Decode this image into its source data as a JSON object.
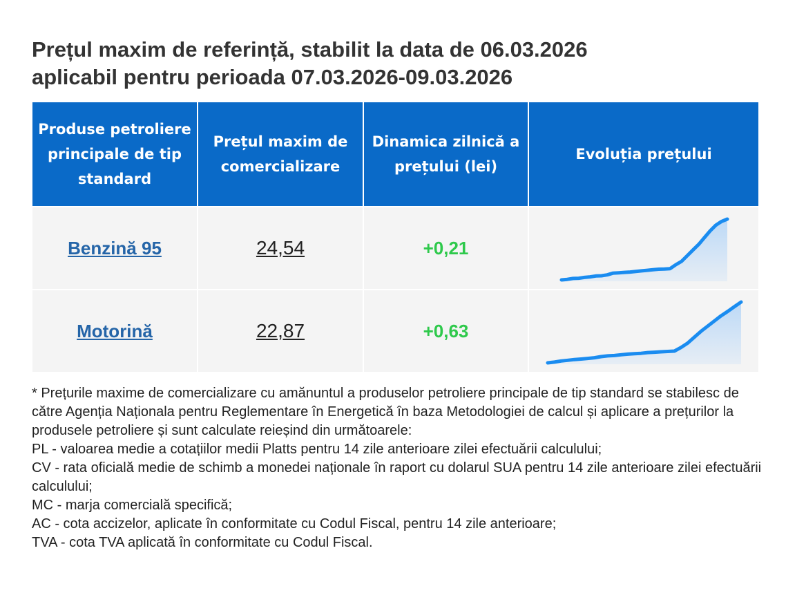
{
  "title_line1": "Prețul maxim de referință, stabilit la data de 06.03.2026",
  "title_line2": "aplicabil pentru perioada 07.03.2026-09.03.2026",
  "table": {
    "headers": [
      "Produse petroliere principale de tip standard",
      "Prețul maxim de comercializare",
      "Dinamica zilnică a prețului (lei)",
      "Evoluția prețului"
    ],
    "rows": [
      {
        "product": "Benzină 95",
        "price": "24,54",
        "change": "+0,21",
        "trend": [
          19.15,
          19.2,
          19.28,
          19.3,
          19.37,
          19.42,
          19.5,
          19.52,
          19.6,
          19.75,
          19.78,
          19.82,
          19.85,
          19.9,
          19.95,
          20.0,
          20.05,
          20.1,
          20.12,
          20.15,
          20.5,
          20.8,
          21.3,
          21.8,
          22.3,
          22.9,
          23.5,
          24.0,
          24.33,
          24.54
        ]
      },
      {
        "product": "Motorină",
        "price": "22,87",
        "change": "+0,63",
        "trend": [
          14.6,
          14.7,
          14.85,
          14.95,
          15.05,
          15.12,
          15.2,
          15.3,
          15.45,
          15.55,
          15.6,
          15.7,
          15.78,
          15.85,
          15.9,
          16.0,
          16.05,
          16.1,
          16.15,
          16.2,
          16.7,
          17.3,
          18.1,
          18.9,
          19.6,
          20.3,
          21.0,
          21.6,
          22.24,
          22.87
        ]
      }
    ]
  },
  "notes": [
    "* Prețurile maxime de comercializare cu amănuntul a produselor petroliere principale de tip standard se stabilesc de către Agenția Naționala pentru Reglementare în Energetică în baza Metodologiei de calcul și aplicare a prețurilor la produsele petroliere și sunt calculate reieșind din următoarele:",
    "PL - valoarea medie a cotațiilor medii Platts pentru 14 zile anterioare zilei efectuării calculului;",
    "CV - rata oficială medie de schimb a monedei naționale în raport cu dolarul SUA pentru 14 zile anterioare zilei efectuării calculului;",
    "MC - marja comercială specifică;",
    "AC - cota accizelor, aplicate în conformitate cu Codul Fiscal, pentru 14 zile anterioare;",
    "TVA - cota TVA aplicată în conformitate cu Codul Fiscal."
  ],
  "colors": {
    "header_bg": "#0a6ac8",
    "link": "#2565a8",
    "positive": "#2ec94b",
    "spark_line": "#1a8cf0",
    "spark_fill": "#bcd9f7"
  }
}
